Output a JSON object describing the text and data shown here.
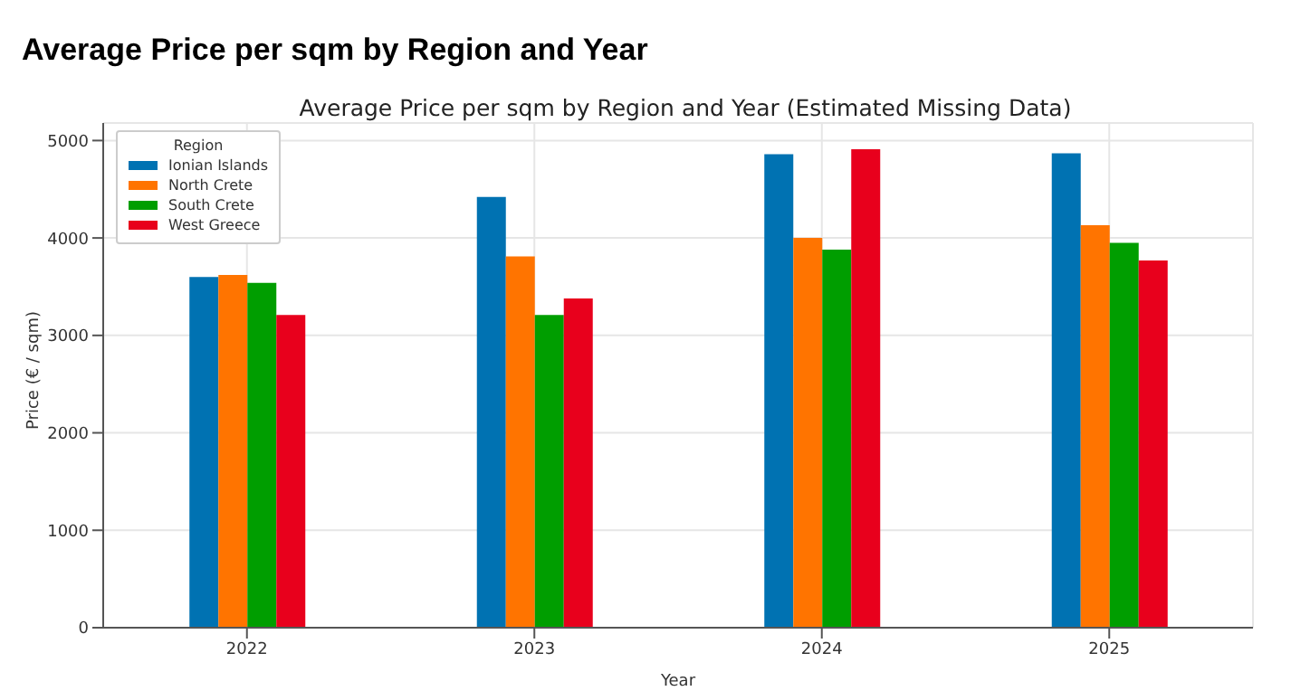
{
  "chart_data": {
    "type": "bar",
    "title": "Average Price per sqm by Region and Year",
    "subtitle": "Average Price per sqm by Region and Year (Estimated Missing Data)",
    "xlabel": "Year",
    "ylabel": "Price (€ / sqm)",
    "legend_title": "Region",
    "categories": [
      "2022",
      "2023",
      "2024",
      "2025"
    ],
    "series": [
      {
        "name": "Ionian Islands",
        "color": "#0072b2",
        "values": [
          3600,
          4420,
          4860,
          4870
        ]
      },
      {
        "name": "North Crete",
        "color": "#ff7400",
        "values": [
          3620,
          3810,
          4000,
          4130
        ]
      },
      {
        "name": "South Crete",
        "color": "#009e00",
        "values": [
          3540,
          3210,
          3880,
          3950
        ]
      },
      {
        "name": "West Greece",
        "color": "#e8001c",
        "values": [
          3210,
          3380,
          4910,
          3770
        ]
      }
    ],
    "ylim": [
      0,
      5180
    ],
    "yticks": [
      0,
      1000,
      2000,
      3000,
      4000,
      5000
    ],
    "grid": true,
    "legend": "top left"
  }
}
